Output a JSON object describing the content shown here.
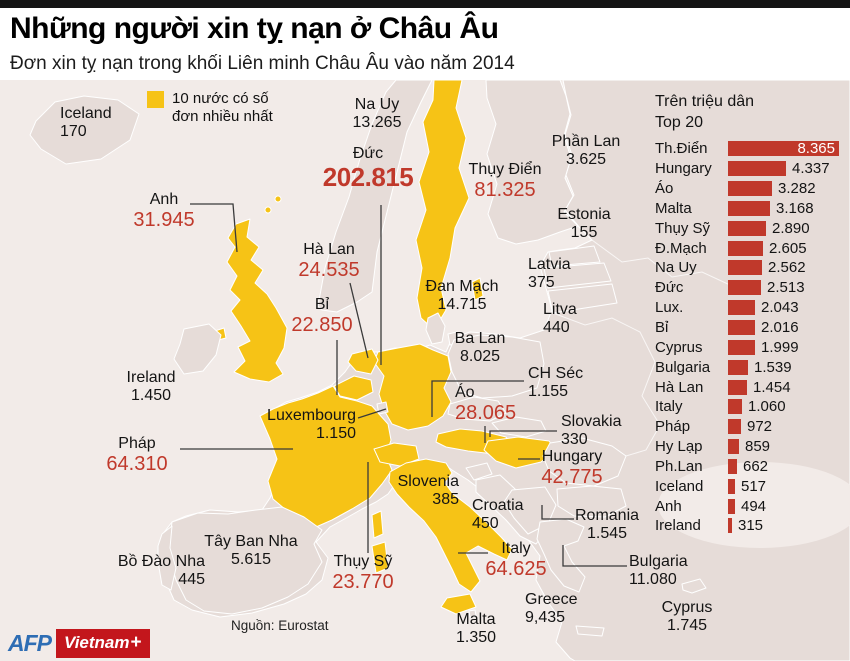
{
  "header": {
    "title": "Những người xin tỵ nạn ở Châu Âu",
    "subtitle": "Đơn xin tỵ nạn trong khối Liên minh Châu Âu vào năm 2014"
  },
  "legend": {
    "label": "10 nước có số đơn nhiều nhất"
  },
  "source": "Nguồn: Eurostat",
  "logo": {
    "afp": "AFP",
    "vietnam": "Vietnam",
    "plus": "+"
  },
  "colors": {
    "highlight_yellow": "#f6c316",
    "bar_red": "#c0392b",
    "value_red": "#c0392b",
    "land": "#e6dcd8",
    "sea": "#f2ebe8",
    "topbar_black": "#141414"
  },
  "chart_data": [
    {
      "type": "map",
      "title": "Đơn xin tỵ nạn trong khối Liên minh Châu Âu vào năm 2014",
      "highlight_note": "10 nước có số đơn nhiều nhất",
      "points": [
        {
          "id": "iceland",
          "name": "Iceland",
          "value_label": "170",
          "value": 170,
          "highlighted": false
        },
        {
          "id": "na_uy",
          "name": "Na Uy",
          "value_label": "13.265",
          "value": 13265,
          "highlighted": false
        },
        {
          "id": "duc",
          "name": "Đức",
          "value_label": "202.815",
          "value": 202815,
          "highlighted": true
        },
        {
          "id": "thuy_dien",
          "name": "Thụy Điển",
          "value_label": "81.325",
          "value": 81325,
          "highlighted": true
        },
        {
          "id": "phan_lan",
          "name": "Phần Lan",
          "value_label": "3.625",
          "value": 3625,
          "highlighted": false
        },
        {
          "id": "estonia",
          "name": "Estonia",
          "value_label": "155",
          "value": 155,
          "highlighted": false
        },
        {
          "id": "latvia",
          "name": "Latvia",
          "value_label": "375",
          "value": 375,
          "highlighted": false
        },
        {
          "id": "litva",
          "name": "Litva",
          "value_label": "440",
          "value": 440,
          "highlighted": false
        },
        {
          "id": "anh",
          "name": "Anh",
          "value_label": "31.945",
          "value": 31945,
          "highlighted": true
        },
        {
          "id": "ha_lan",
          "name": "Hà Lan",
          "value_label": "24.535",
          "value": 24535,
          "highlighted": true
        },
        {
          "id": "bi",
          "name": "Bỉ",
          "value_label": "22.850",
          "value": 22850,
          "highlighted": true
        },
        {
          "id": "dan_mach",
          "name": "Đan Mạch",
          "value_label": "14.715",
          "value": 14715,
          "highlighted": false
        },
        {
          "id": "ba_lan",
          "name": "Ba Lan",
          "value_label": "8.025",
          "value": 8025,
          "highlighted": false
        },
        {
          "id": "ch_sec",
          "name": "CH Séc",
          "value_label": "1.155",
          "value": 1155,
          "highlighted": false
        },
        {
          "id": "ireland",
          "name": "Ireland",
          "value_label": "1.450",
          "value": 1450,
          "highlighted": false
        },
        {
          "id": "luxembourg",
          "name": "Luxembourg",
          "value_label": "1.150",
          "value": 1150,
          "highlighted": false
        },
        {
          "id": "ao",
          "name": "Áo",
          "value_label": "28.065",
          "value": 28065,
          "highlighted": true
        },
        {
          "id": "slovakia",
          "name": "Slovakia",
          "value_label": "330",
          "value": 330,
          "highlighted": false
        },
        {
          "id": "phap",
          "name": "Pháp",
          "value_label": "64.310",
          "value": 64310,
          "highlighted": true
        },
        {
          "id": "hungary",
          "name": "Hungary",
          "value_label": "42,775",
          "value": 42775,
          "highlighted": true
        },
        {
          "id": "slovenia",
          "name": "Slovenia",
          "value_label": "385",
          "value": 385,
          "highlighted": false
        },
        {
          "id": "croatia",
          "name": "Croatia",
          "value_label": "450",
          "value": 450,
          "highlighted": false
        },
        {
          "id": "romania",
          "name": "Romania",
          "value_label": "1.545",
          "value": 1545,
          "highlighted": false
        },
        {
          "id": "tay_ban_nha",
          "name": "Tây Ban Nha",
          "value_label": "5.615",
          "value": 5615,
          "highlighted": false
        },
        {
          "id": "bo_dao_nha",
          "name": "Bồ Đào Nha",
          "value_label": "445",
          "value": 445,
          "highlighted": false
        },
        {
          "id": "thuy_sy",
          "name": "Thụy Sỹ",
          "value_label": "23.770",
          "value": 23770,
          "highlighted": true
        },
        {
          "id": "italy",
          "name": "Italy",
          "value_label": "64.625",
          "value": 64625,
          "highlighted": true
        },
        {
          "id": "bulgaria",
          "name": "Bulgaria",
          "value_label": "11.080",
          "value": 11080,
          "highlighted": false
        },
        {
          "id": "greece",
          "name": "Greece",
          "value_label": "9,435",
          "value": 9435,
          "highlighted": false
        },
        {
          "id": "malta",
          "name": "Malta",
          "value_label": "1.350",
          "value": 1350,
          "highlighted": false
        },
        {
          "id": "cyprus",
          "name": "Cyprus",
          "value_label": "1.745",
          "value": 1745,
          "highlighted": false
        }
      ]
    },
    {
      "type": "bar",
      "title": "Trên triệu dân",
      "subtitle": "Top 20",
      "orientation": "horizontal",
      "bar_color": "#c0392b",
      "xlim": [
        0,
        8365
      ],
      "rows": [
        {
          "id": "th_dien",
          "label": "Th.Điển",
          "value_label": "8.365",
          "value": 8365
        },
        {
          "id": "hungary",
          "label": "Hungary",
          "value_label": "4.337",
          "value": 4337
        },
        {
          "id": "ao",
          "label": "Áo",
          "value_label": "3.282",
          "value": 3282
        },
        {
          "id": "malta",
          "label": "Malta",
          "value_label": "3.168",
          "value": 3168
        },
        {
          "id": "thuy_sy",
          "label": "Thụy Sỹ",
          "value_label": "2.890",
          "value": 2890
        },
        {
          "id": "d_mach",
          "label": "Đ.Mạch",
          "value_label": "2.605",
          "value": 2605
        },
        {
          "id": "na_uy",
          "label": "Na Uy",
          "value_label": "2.562",
          "value": 2562
        },
        {
          "id": "duc",
          "label": "Đức",
          "value_label": "2.513",
          "value": 2513
        },
        {
          "id": "lux",
          "label": "Lux.",
          "value_label": "2.043",
          "value": 2043
        },
        {
          "id": "bi",
          "label": "Bỉ",
          "value_label": "2.016",
          "value": 2016
        },
        {
          "id": "cyprus",
          "label": "Cyprus",
          "value_label": "1.999",
          "value": 1999
        },
        {
          "id": "bulgaria",
          "label": "Bulgaria",
          "value_label": "1.539",
          "value": 1539
        },
        {
          "id": "ha_lan",
          "label": "Hà Lan",
          "value_label": "1.454",
          "value": 1454
        },
        {
          "id": "italy",
          "label": "Italy",
          "value_label": "1.060",
          "value": 1060
        },
        {
          "id": "phap",
          "label": "Pháp",
          "value_label": "972",
          "value": 972
        },
        {
          "id": "hy_lap",
          "label": "Hy Lạp",
          "value_label": "859",
          "value": 859
        },
        {
          "id": "ph_lan",
          "label": "Ph.Lan",
          "value_label": "662",
          "value": 662
        },
        {
          "id": "iceland",
          "label": "Iceland",
          "value_label": "517",
          "value": 517
        },
        {
          "id": "anh",
          "label": "Anh",
          "value_label": "494",
          "value": 494
        },
        {
          "id": "ireland",
          "label": "Ireland",
          "value_label": "315",
          "value": 315
        }
      ]
    }
  ]
}
